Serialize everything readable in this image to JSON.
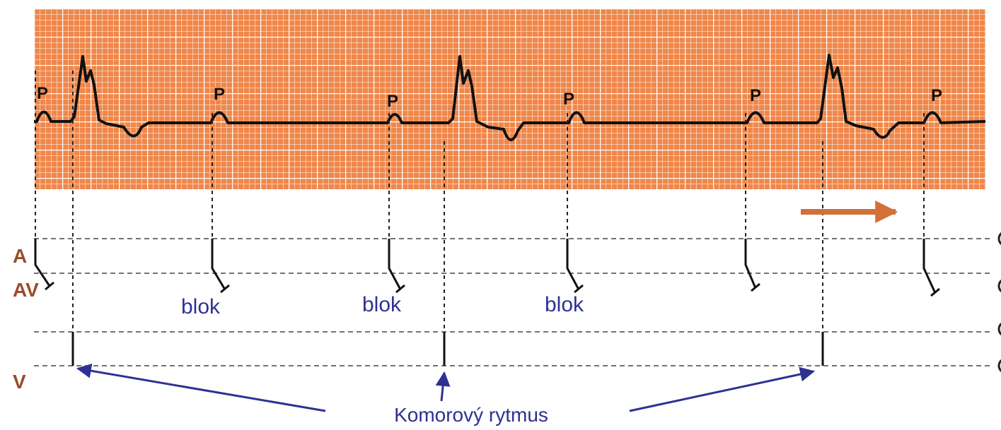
{
  "p_labels": [
    "P",
    "P",
    "P",
    "P",
    "P",
    "P"
  ],
  "rows": [
    "A",
    "AV",
    "V"
  ],
  "block_labels": [
    "blok",
    "blok",
    "blok"
  ],
  "caption": "Komorový rytmus"
}
